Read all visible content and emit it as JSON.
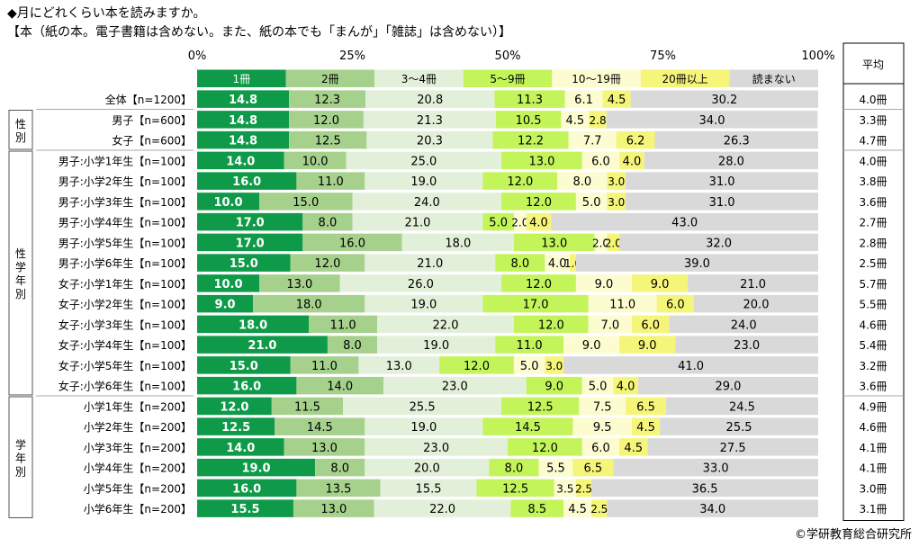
{
  "title": "◆月にどれくらい本を読みますか。",
  "subtitle": "【本（紙の本。電子書籍は含めない。また、紙の本でも「まんが」「雑誌」は含めない）】",
  "credit": "©学研教育総合研究所",
  "avg_header": "平均",
  "chart_data": {
    "type": "bar",
    "orientation": "horizontal",
    "stacked": true,
    "percent_stacked": true,
    "xlim": [
      0,
      100
    ],
    "x_ticks": [
      "0%",
      "25%",
      "50%",
      "75%",
      "100%"
    ],
    "legend_position": "top, inside first row of plot",
    "series": [
      {
        "name": "1冊",
        "color": "#0e9a48",
        "label_color": "#ffffff"
      },
      {
        "name": "2冊",
        "color": "#a6d18c",
        "label_color": "#000000"
      },
      {
        "name": "3～4冊",
        "color": "#e2f0d9",
        "label_color": "#000000"
      },
      {
        "name": "5～9冊",
        "color": "#c3f55a",
        "label_color": "#000000"
      },
      {
        "name": "10～19冊",
        "color": "#fcfcd0",
        "label_color": "#000000"
      },
      {
        "name": "20冊以上",
        "color": "#f5f57a",
        "label_color": "#000000"
      },
      {
        "name": "読まない",
        "color": "#d9d9d9",
        "label_color": "#000000"
      }
    ],
    "groups": [
      {
        "label": "",
        "rows": [
          {
            "label": "全体【n=1200】",
            "values": [
              14.8,
              12.3,
              20.8,
              11.3,
              6.1,
              4.5,
              30.2
            ],
            "avg": "4.0冊"
          }
        ]
      },
      {
        "label": "性別",
        "rows": [
          {
            "label": "男子【n=600】",
            "values": [
              14.8,
              12.0,
              21.3,
              10.5,
              4.5,
              2.8,
              34.0
            ],
            "avg": "3.3冊"
          },
          {
            "label": "女子【n=600】",
            "values": [
              14.8,
              12.5,
              20.3,
              12.2,
              7.7,
              6.2,
              26.3
            ],
            "avg": "4.7冊"
          }
        ]
      },
      {
        "label": "性学年別",
        "rows": [
          {
            "label": "男子:小学1年生【n=100】",
            "values": [
              14.0,
              10.0,
              25.0,
              13.0,
              6.0,
              4.0,
              28.0
            ],
            "avg": "4.0冊"
          },
          {
            "label": "男子:小学2年生【n=100】",
            "values": [
              16.0,
              11.0,
              19.0,
              12.0,
              8.0,
              3.0,
              31.0
            ],
            "avg": "3.8冊"
          },
          {
            "label": "男子:小学3年生【n=100】",
            "values": [
              10.0,
              15.0,
              24.0,
              12.0,
              5.0,
              3.0,
              31.0
            ],
            "avg": "3.6冊"
          },
          {
            "label": "男子:小学4年生【n=100】",
            "values": [
              17.0,
              8.0,
              21.0,
              5.0,
              2.0,
              4.0,
              43.0
            ],
            "avg": "2.7冊"
          },
          {
            "label": "男子:小学5年生【n=100】",
            "values": [
              17.0,
              16.0,
              18.0,
              13.0,
              2.0,
              2.0,
              32.0
            ],
            "avg": "2.8冊"
          },
          {
            "label": "男子:小学6年生【n=100】",
            "values": [
              15.0,
              12.0,
              21.0,
              8.0,
              4.0,
              1.0,
              39.0
            ],
            "avg": "2.5冊"
          },
          {
            "label": "女子:小学1年生【n=100】",
            "values": [
              10.0,
              13.0,
              26.0,
              12.0,
              9.0,
              9.0,
              21.0
            ],
            "avg": "5.7冊"
          },
          {
            "label": "女子:小学2年生【n=100】",
            "values": [
              9.0,
              18.0,
              19.0,
              17.0,
              11.0,
              6.0,
              20.0
            ],
            "avg": "5.5冊"
          },
          {
            "label": "女子:小学3年生【n=100】",
            "values": [
              18.0,
              11.0,
              22.0,
              12.0,
              7.0,
              6.0,
              24.0
            ],
            "avg": "4.6冊"
          },
          {
            "label": "女子:小学4年生【n=100】",
            "values": [
              21.0,
              8.0,
              19.0,
              11.0,
              9.0,
              9.0,
              23.0
            ],
            "avg": "5.4冊"
          },
          {
            "label": "女子:小学5年生【n=100】",
            "values": [
              15.0,
              11.0,
              13.0,
              12.0,
              5.0,
              3.0,
              41.0
            ],
            "avg": "3.2冊"
          },
          {
            "label": "女子:小学6年生【n=100】",
            "values": [
              16.0,
              14.0,
              23.0,
              9.0,
              5.0,
              4.0,
              29.0
            ],
            "avg": "3.6冊"
          }
        ]
      },
      {
        "label": "学年別",
        "rows": [
          {
            "label": "小学1年生【n=200】",
            "values": [
              12.0,
              11.5,
              25.5,
              12.5,
              7.5,
              6.5,
              24.5
            ],
            "avg": "4.9冊"
          },
          {
            "label": "小学2年生【n=200】",
            "values": [
              12.5,
              14.5,
              19.0,
              14.5,
              9.5,
              4.5,
              25.5
            ],
            "avg": "4.6冊"
          },
          {
            "label": "小学3年生【n=200】",
            "values": [
              14.0,
              13.0,
              23.0,
              12.0,
              6.0,
              4.5,
              27.5
            ],
            "avg": "4.1冊"
          },
          {
            "label": "小学4年生【n=200】",
            "values": [
              19.0,
              8.0,
              20.0,
              8.0,
              5.5,
              6.5,
              33.0
            ],
            "avg": "4.1冊"
          },
          {
            "label": "小学5年生【n=200】",
            "values": [
              16.0,
              13.5,
              15.5,
              12.5,
              3.5,
              2.5,
              36.5
            ],
            "avg": "3.0冊"
          },
          {
            "label": "小学6年生【n=200】",
            "values": [
              15.5,
              13.0,
              22.0,
              8.5,
              4.5,
              2.5,
              34.0
            ],
            "avg": "3.1冊"
          }
        ]
      }
    ]
  }
}
